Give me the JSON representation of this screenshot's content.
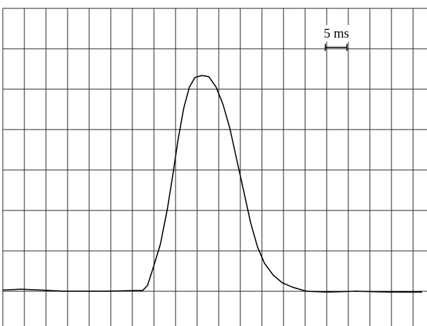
{
  "chart_data": {
    "type": "line",
    "annotation": "5 ms",
    "x": [
      0,
      4.2,
      9.0,
      13.9,
      23.5,
      32.4,
      33.5,
      34.8,
      36.5,
      38.1,
      39.4,
      40.6,
      41.9,
      43.2,
      44.5,
      46.1,
      47.7,
      49.4,
      51.0,
      52.6,
      54.2,
      55.8,
      57.4,
      59.0,
      60.6,
      62.6,
      64.7,
      67.1,
      70.3,
      75.2,
      81.6,
      89.7,
      97.1
    ],
    "values": [
      0.03,
      0.05,
      0.03,
      0,
      0,
      0.02,
      0.14,
      0.57,
      1.17,
      2.03,
      2.9,
      3.76,
      4.53,
      5.05,
      5.29,
      5.34,
      5.31,
      5.05,
      4.62,
      4.02,
      3.24,
      2.47,
      1.69,
      1.09,
      0.69,
      0.4,
      0.21,
      0.1,
      0,
      -0.02,
      0,
      -0.02,
      -0.02
    ],
    "color": "#000000",
    "xlim": [
      0,
      98
    ],
    "ylim": [
      -0.86,
      7
    ],
    "xticks": [
      5,
      10,
      15,
      20,
      25,
      30,
      35,
      40,
      45,
      50,
      55,
      60,
      65,
      70,
      75,
      80,
      85,
      90,
      95
    ],
    "yticks": [
      0,
      1,
      2,
      3,
      4,
      5,
      6,
      7
    ],
    "grid": true
  }
}
